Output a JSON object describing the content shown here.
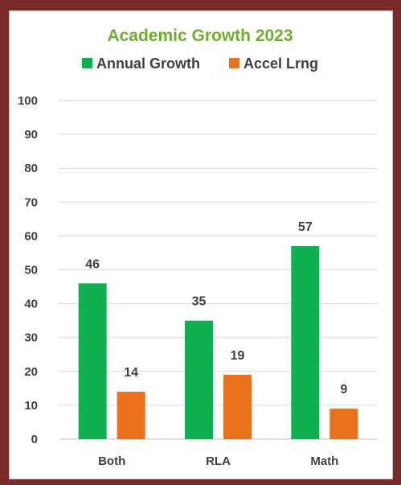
{
  "chart_data": {
    "type": "bar",
    "title": "Academic Growth 2023",
    "categories": [
      "Both",
      "RLA",
      "Math"
    ],
    "series": [
      {
        "name": "Annual Growth",
        "color": "#0fb04f",
        "values": [
          46,
          35,
          57
        ]
      },
      {
        "name": "Accel Lrng",
        "color": "#e8711a",
        "values": [
          14,
          19,
          9
        ]
      }
    ],
    "yticks": [
      "0",
      "10",
      "20",
      "30",
      "40",
      "50",
      "60",
      "70",
      "80",
      "90",
      "100"
    ],
    "ylim": [
      0,
      100
    ],
    "grid": true,
    "legend_position": "top",
    "xlabel": "",
    "ylabel": ""
  },
  "colors": {
    "title": "#6fad2f",
    "frame": "#7b2a2a",
    "card_border": "#b9c4d6"
  }
}
